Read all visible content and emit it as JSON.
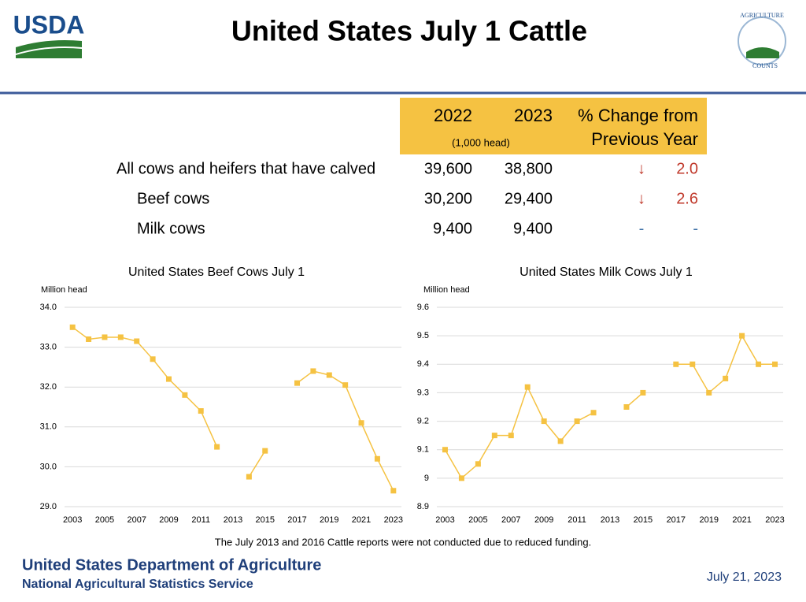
{
  "header": {
    "title": "United States July 1 Cattle",
    "logo_left": "USDA",
    "logo_right": [
      "AGRICULTURE",
      "COUNTS"
    ]
  },
  "table": {
    "columns": [
      "2022",
      "2023",
      "% Change from",
      "Previous Year"
    ],
    "unit": "(1,000 head)",
    "rows": [
      [
        "All cows and heifers that have calved",
        "39,600",
        "38,800",
        "↓",
        "2.0"
      ],
      [
        "Beef cows",
        "30,200",
        "29,400",
        "↓",
        "2.6"
      ],
      [
        "Milk cows",
        "9,400",
        "9,400",
        "-",
        "-"
      ]
    ]
  },
  "chart_data": [
    {
      "type": "line",
      "title": "United States Beef Cows July 1",
      "y_label": "Million head",
      "color": "#f5c242",
      "x": [
        2003,
        2004,
        2005,
        2006,
        2007,
        2008,
        2009,
        2010,
        2011,
        2012,
        2013,
        2014,
        2015,
        2016,
        2017,
        2018,
        2019,
        2020,
        2021,
        2022,
        2023
      ],
      "values": [
        33.5,
        33.2,
        33.25,
        33.25,
        33.15,
        32.7,
        32.2,
        31.8,
        31.4,
        30.5,
        null,
        29.75,
        30.4,
        null,
        32.1,
        32.4,
        32.3,
        32.05,
        31.1,
        30.2,
        29.4
      ],
      "xlim": [
        2002.5,
        2023.5
      ],
      "xticks": [
        2003,
        2005,
        2007,
        2009,
        2011,
        2013,
        2015,
        2017,
        2019,
        2021,
        2023
      ],
      "ylim": [
        29,
        34
      ],
      "yticks": [
        {
          "value": 29,
          "label": "29.0"
        },
        {
          "value": 30,
          "label": "30.0"
        },
        {
          "value": 31,
          "label": "31.0"
        },
        {
          "value": 32,
          "label": "32.0"
        },
        {
          "value": 33,
          "label": "33.0"
        },
        {
          "value": 34,
          "label": "34.0"
        }
      ],
      "grid": true
    },
    {
      "type": "line",
      "title": "United States Milk Cows July 1",
      "y_label": "Million head",
      "color": "#f5c242",
      "x": [
        2003,
        2004,
        2005,
        2006,
        2007,
        2008,
        2009,
        2010,
        2011,
        2012,
        2013,
        2014,
        2015,
        2016,
        2017,
        2018,
        2019,
        2020,
        2021,
        2022,
        2023
      ],
      "values": [
        9.1,
        9.0,
        9.05,
        9.15,
        9.15,
        9.32,
        9.2,
        9.13,
        9.2,
        9.23,
        null,
        9.25,
        9.3,
        null,
        9.4,
        9.4,
        9.3,
        9.35,
        9.5,
        9.4,
        9.4
      ],
      "xlim": [
        2002.5,
        2023.5
      ],
      "xticks": [
        2003,
        2005,
        2007,
        2009,
        2011,
        2013,
        2015,
        2017,
        2019,
        2021,
        2023
      ],
      "ylim": [
        8.9,
        9.6
      ],
      "yticks": [
        8.9,
        9,
        9.1,
        9.2,
        9.3,
        9.4,
        9.5,
        9.6
      ],
      "grid": true
    }
  ],
  "note": "The July 2013 and 2016 Cattle reports were not conducted due to reduced funding.",
  "footer": {
    "org": "United States Department of Agriculture",
    "agency": "National Agricultural Statistics Service",
    "date": "July 21, 2023"
  }
}
